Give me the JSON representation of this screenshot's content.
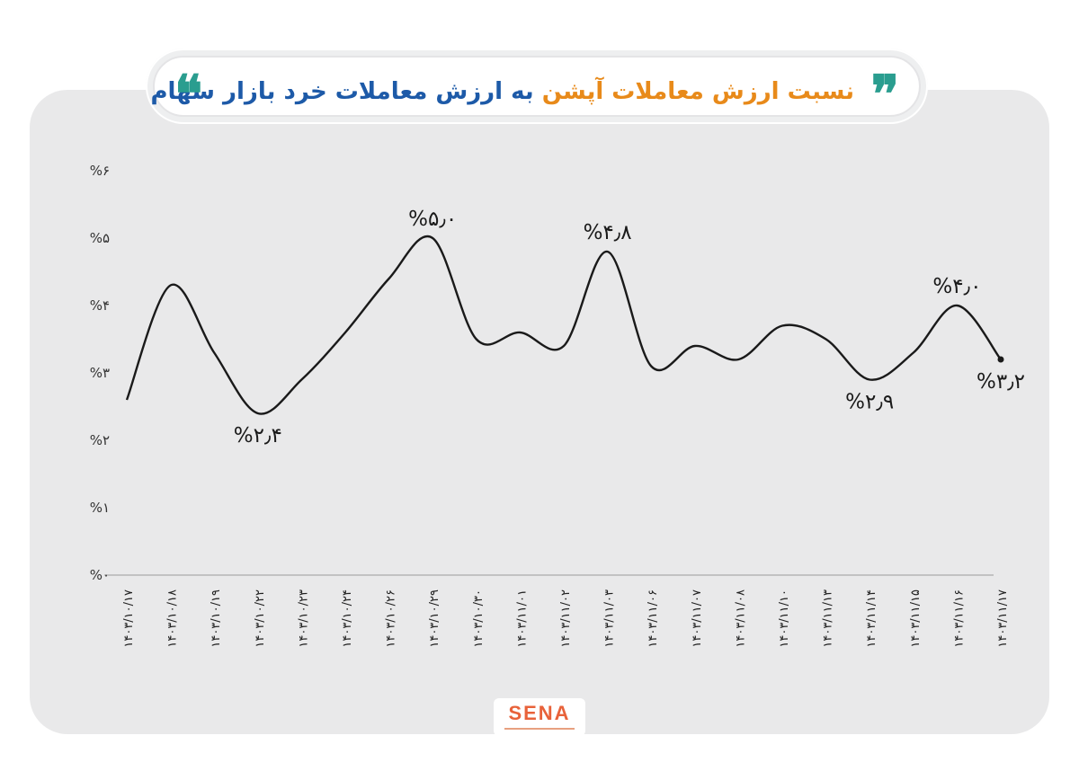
{
  "header": {
    "title_part1": "نسبت ارزش معاملات آپشن",
    "title_part2": "به ارزش معاملات خرد بازار سهام",
    "quote_open": "❞",
    "quote_close": "❝"
  },
  "colors": {
    "title_orange": "#e88a1a",
    "title_blue": "#1d5aa8",
    "quote_teal": "#2a9d8f",
    "line": "#1a1a1a",
    "card_bg": "#e9e9ea",
    "logo": "#e8623a"
  },
  "logo": {
    "text": "SENA"
  },
  "chart_data": {
    "type": "line",
    "title": "نسبت ارزش معاملات آپشن به ارزش معاملات خرد بازار سهام",
    "ylim": [
      0,
      6
    ],
    "y_ticks": [
      "%۰",
      "%۱",
      "%۲",
      "%۳",
      "%۴",
      "%۵",
      "%۶"
    ],
    "categories": [
      "۱۴۰۳/۱۰/۱۷",
      "۱۴۰۳/۱۰/۱۸",
      "۱۴۰۳/۱۰/۱۹",
      "۱۴۰۳/۱۰/۲۲",
      "۱۴۰۳/۱۰/۲۳",
      "۱۴۰۳/۱۰/۲۴",
      "۱۴۰۳/۱۰/۲۶",
      "۱۴۰۳/۱۰/۲۹",
      "۱۴۰۳/۱۰/۳۰",
      "۱۴۰۳/۱۱/۰۱",
      "۱۴۰۳/۱۱/۰۲",
      "۱۴۰۳/۱۱/۰۳",
      "۱۴۰۳/۱۱/۰۶",
      "۱۴۰۳/۱۱/۰۷",
      "۱۴۰۳/۱۱/۰۸",
      "۱۴۰۳/۱۱/۱۰",
      "۱۴۰۳/۱۱/۱۳",
      "۱۴۰۳/۱۱/۱۴",
      "۱۴۰۳/۱۱/۱۵",
      "۱۴۰۳/۱۱/۱۶",
      "۱۴۰۳/۱۱/۱۷"
    ],
    "values": [
      2.6,
      4.3,
      3.3,
      2.4,
      2.9,
      3.6,
      4.4,
      5.0,
      3.5,
      3.6,
      3.4,
      4.8,
      3.1,
      3.4,
      3.2,
      3.7,
      3.5,
      2.9,
      3.3,
      4.0,
      3.2
    ],
    "data_labels": [
      {
        "index": 3,
        "text": "%۲٫۴",
        "pos": "below"
      },
      {
        "index": 7,
        "text": "%۵٫۰",
        "pos": "above"
      },
      {
        "index": 11,
        "text": "%۴٫۸",
        "pos": "above"
      },
      {
        "index": 17,
        "text": "%۲٫۹",
        "pos": "below"
      },
      {
        "index": 19,
        "text": "%۴٫۰",
        "pos": "above"
      },
      {
        "index": 20,
        "text": "%۳٫۲",
        "pos": "below"
      }
    ],
    "grid": false,
    "legend": "none"
  }
}
